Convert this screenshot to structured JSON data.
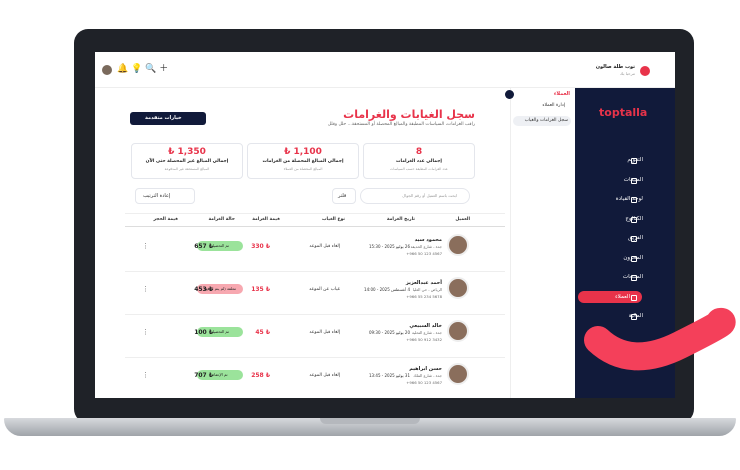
{
  "topbar": {
    "salon_name": "توب طلة صالون",
    "salon_sub": "مرحبا بك"
  },
  "sidebar": {
    "logo": "toptalla",
    "items": [
      "التقويم",
      "المبيعات",
      "لوحة القيادة",
      "الكتالوج",
      "الفريق",
      "المخزون",
      "المنتجات",
      "العملاء",
      "المالية"
    ]
  },
  "subnav": {
    "title": "العملاء",
    "items": [
      "إدارة العملاء",
      "سجل الغرامات والغياب"
    ]
  },
  "header": {
    "title": "سجل الغيابات والغرامات",
    "subtitle": "راقب الغرامات، السياسات المطبقة والمبالغ المحصلة أو المستحقة... حلل وقلل",
    "button": "خيارات متقدمة"
  },
  "stats": [
    {
      "value": "8",
      "label": "إجمالي عدد الغرامات",
      "note": "عدد الغرامات المطبقة حسب السياسات"
    },
    {
      "value": "1,100 ₺",
      "label": "إجمالي المبالغ المحصلة من الغرامات",
      "note": "المبالغ المحصلة من العملاء"
    },
    {
      "value": "1,350 ₺",
      "label": "إجمالي المبالغ غير المحصلة حتى الآن",
      "note": "المبالغ المستحقة غير المدفوعة"
    }
  ],
  "filters": {
    "search": "ابحث باسم العميل أو رقم الجوال",
    "filter": "فلتر",
    "reset": "إعادة الترتيب"
  },
  "table": {
    "columns": [
      "العميل",
      "تاريخ الغرامة",
      "نوع الغياب",
      "قيمة الغرامة",
      "حالة الغرامة",
      "قيمة الحجز"
    ],
    "rows": [
      {
        "name": "محمود سيد",
        "location": "جدة - شارع الحديقة",
        "phone": "+966 50 123 4567",
        "date": "26 يوليو 2025 - 15:30",
        "type": "إلغاء قبل الموعد",
        "fine": "₺ 330",
        "status": "تم التحصيل",
        "status_color": "#9be39b",
        "booking": "₺ 657"
      },
      {
        "name": "أحمد عبدالعزيز",
        "location": "الرياض - حي العليا",
        "phone": "+966 55 234 5678",
        "date": "4 أغسطس 2025 - 14:00",
        "type": "غياب عن الموعد",
        "fine": "₺ 135",
        "status": "معلقة (لم يتم الدفع)",
        "status_color": "#f7a8b0",
        "booking": "₺ 453"
      },
      {
        "name": "خالد السبيعي",
        "location": "جدة - شارع التحلية",
        "phone": "+966 50 912 3432",
        "date": "20 يوليو 2025 - 09:30",
        "type": "إلغاء قبل الموعد",
        "fine": "₺ 45",
        "status": "تم التحصيل",
        "status_color": "#9be39b",
        "booking": "₺ 100"
      },
      {
        "name": "حسن ابراهيم",
        "location": "جدة - شارع الملك",
        "phone": "+966 50 123 4567",
        "date": "31 يوليو 2025 - 13:45",
        "type": "إلغاء قبل الموعد",
        "fine": "₺ 258",
        "status": "تم الإعفاء",
        "status_color": "#9be39b",
        "booking": "₺ 707"
      }
    ]
  }
}
